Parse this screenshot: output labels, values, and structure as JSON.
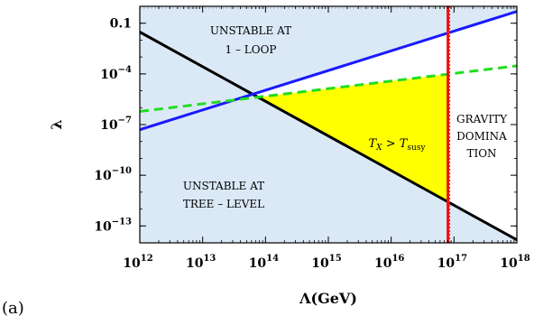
{
  "panel_label": "(a)",
  "chart_data": {
    "type": "line",
    "xlabel": "Λ(GeV)",
    "ylabel": "λ",
    "x_scale": "log",
    "y_scale": "log",
    "xlim": [
      1000000000000.0,
      1e+18
    ],
    "ylim": [
      1e-14,
      1
    ],
    "x_ticks": [
      {
        "value": 1000000000000.0,
        "base": "10",
        "exp": "12"
      },
      {
        "value": 10000000000000.0,
        "base": "10",
        "exp": "13"
      },
      {
        "value": 100000000000000.0,
        "base": "10",
        "exp": "14"
      },
      {
        "value": 1000000000000000.0,
        "base": "10",
        "exp": "15"
      },
      {
        "value": 1e+16,
        "base": "10",
        "exp": "16"
      },
      {
        "value": 1e+17,
        "base": "10",
        "exp": "17"
      },
      {
        "value": 1e+18,
        "base": "10",
        "exp": "18"
      }
    ],
    "y_ticks": [
      {
        "value": 0.1,
        "base": "0.1",
        "exp": ""
      },
      {
        "value": 0.0001,
        "base": "10",
        "exp": "−4"
      },
      {
        "value": 1e-07,
        "base": "10",
        "exp": "−7"
      },
      {
        "value": 1e-10,
        "base": "10",
        "exp": "−10"
      },
      {
        "value": 1e-13,
        "base": "10",
        "exp": "−13"
      }
    ],
    "series": [
      {
        "style": "solid",
        "color": "#000000",
        "x": [
          1000000000000.0,
          1e+18
        ],
        "y": [
          0.03,
          1.5e-14
        ]
      },
      {
        "style": "solid",
        "color": "#1a1aff",
        "x": [
          1000000000000.0,
          1e+18
        ],
        "y": [
          5e-08,
          0.5
        ]
      },
      {
        "style": "dashed",
        "color": "#22dd22",
        "x": [
          1000000000000.0,
          1e+18
        ],
        "y": [
          6e-07,
          0.0003
        ]
      },
      {
        "style": "vertical",
        "color": "#ee1111",
        "x": [
          8e+16,
          8e+16
        ],
        "y": [
          1e-14,
          1
        ]
      }
    ],
    "regions": [
      {
        "label": "UNSTABLE AT 1 – LOOP",
        "color": "#dbe9f7",
        "lines": [
          "UNSTABLE AT",
          "1 – LOOP"
        ]
      },
      {
        "label": "UNSTABLE AT TREE – LEVEL",
        "color": "#dbe9f7",
        "lines": [
          "UNSTABLE AT",
          "TREE – LEVEL"
        ]
      },
      {
        "label": "T_X > T_susy",
        "color": "#ffff00"
      },
      {
        "label": "GRAVITY DOMINATION",
        "lines": [
          "GRAVITY",
          "DOMINA",
          "TION"
        ]
      }
    ],
    "annotation": {
      "T": "T",
      "X": "X",
      "gt": " > ",
      "susy": "susy"
    }
  }
}
